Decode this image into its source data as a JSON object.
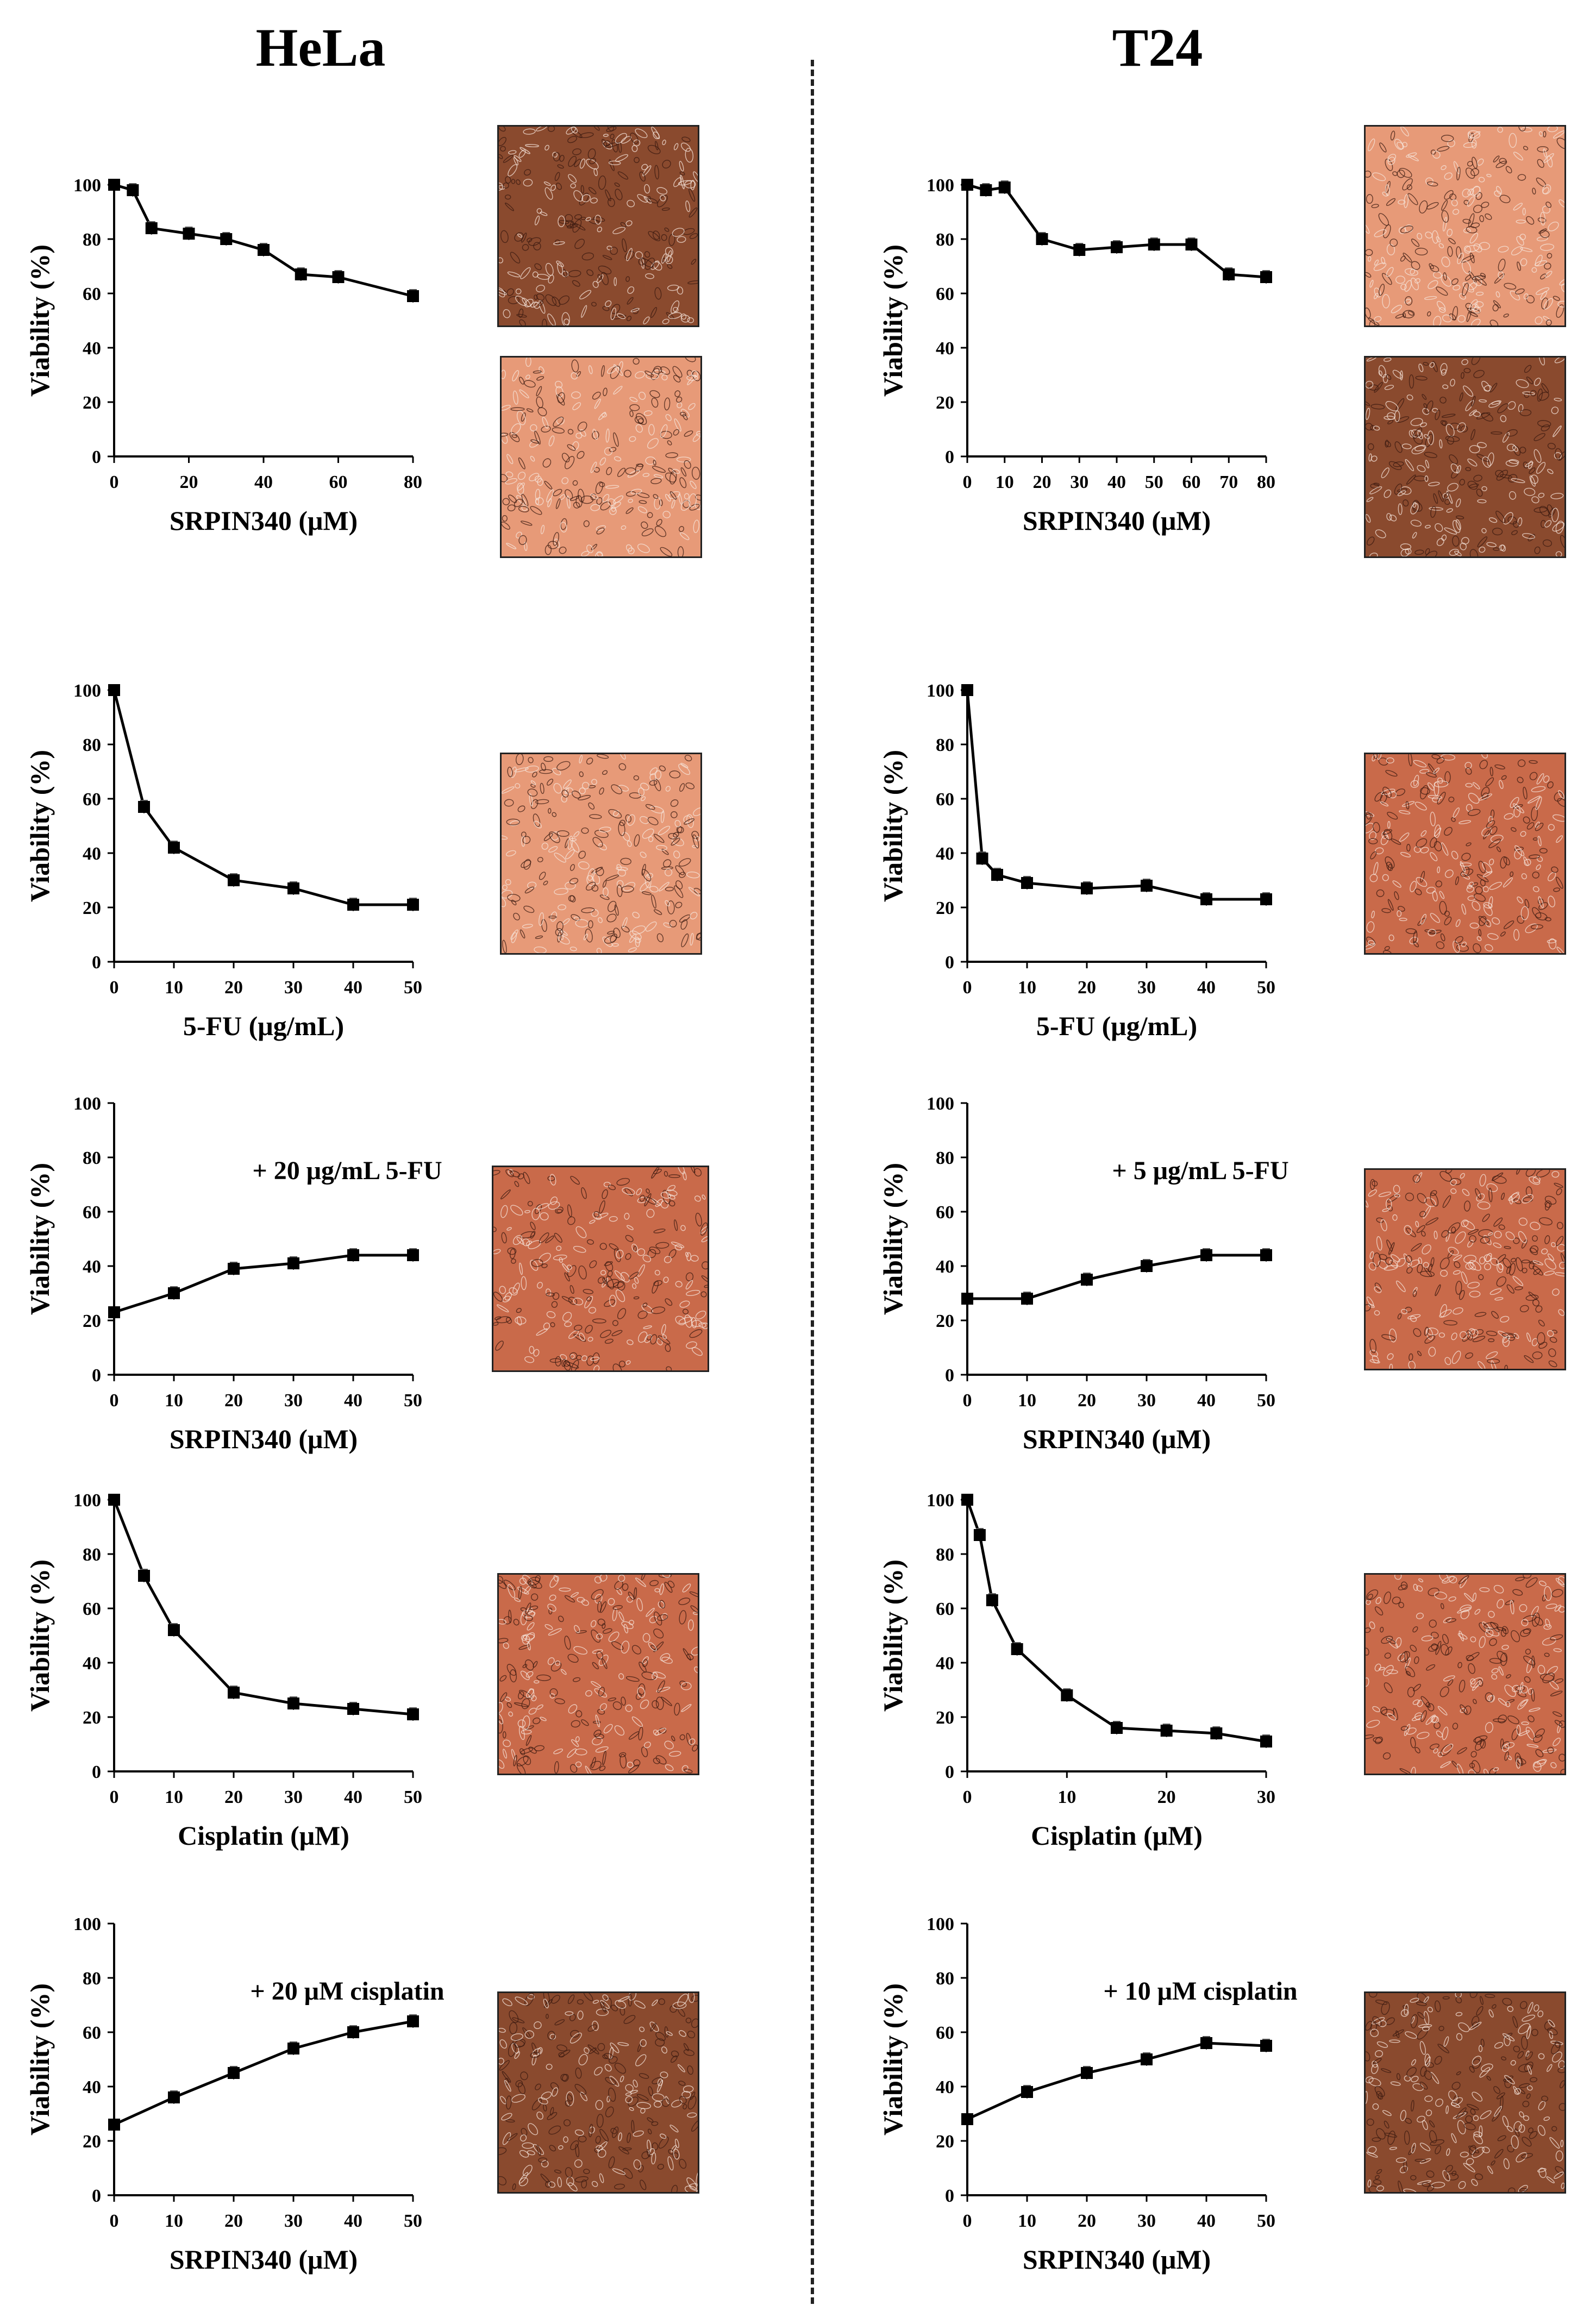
{
  "columns": {
    "left_title": "HeLa",
    "right_title": "T24"
  },
  "colors": {
    "line": "#000000",
    "micro_dark": "#8a4a2e",
    "micro_mid": "#c96a4a",
    "micro_light": "#e79a78"
  },
  "chart_data": [
    {
      "type": "line",
      "panel": "hela-1",
      "xlabel": "SRPIN340 (μM)",
      "ylabel": "Viability (%)",
      "annotation": "",
      "x": [
        0,
        5,
        10,
        20,
        30,
        40,
        50,
        60,
        80
      ],
      "y": [
        100,
        98,
        84,
        82,
        80,
        76,
        67,
        66,
        59
      ],
      "xticks": [
        0,
        20,
        40,
        60,
        80
      ],
      "xlim": [
        0,
        80
      ],
      "ylim": [
        0,
        100
      ],
      "yticks": [
        0,
        20,
        40,
        60,
        80,
        100
      ]
    },
    {
      "type": "line",
      "panel": "t24-1",
      "xlabel": "SRPIN340 (μM)",
      "ylabel": "Viability (%)",
      "annotation": "",
      "x": [
        0,
        5,
        10,
        20,
        30,
        40,
        50,
        60,
        70,
        80
      ],
      "y": [
        100,
        98,
        99,
        80,
        76,
        77,
        78,
        78,
        67,
        66
      ],
      "xticks": [
        0,
        10,
        20,
        30,
        40,
        50,
        60,
        70,
        80
      ],
      "xlim": [
        0,
        80
      ],
      "ylim": [
        0,
        100
      ],
      "yticks": [
        0,
        20,
        40,
        60,
        80,
        100
      ]
    },
    {
      "type": "line",
      "panel": "hela-2",
      "xlabel": "5-FU (μg/mL)",
      "ylabel": "Viability (%)",
      "annotation": "",
      "x": [
        0,
        5,
        10,
        20,
        30,
        40,
        50
      ],
      "y": [
        100,
        57,
        42,
        30,
        27,
        21,
        21
      ],
      "xticks": [
        0,
        10,
        20,
        30,
        40,
        50
      ],
      "xlim": [
        0,
        50
      ],
      "ylim": [
        0,
        100
      ],
      "yticks": [
        0,
        20,
        40,
        60,
        80,
        100
      ]
    },
    {
      "type": "line",
      "panel": "t24-2",
      "xlabel": "5-FU (μg/mL)",
      "ylabel": "Viability (%)",
      "annotation": "",
      "x": [
        0,
        2.5,
        5,
        10,
        20,
        30,
        40,
        50
      ],
      "y": [
        100,
        38,
        32,
        29,
        27,
        28,
        23,
        23
      ],
      "xticks": [
        0,
        10,
        20,
        30,
        40,
        50
      ],
      "xlim": [
        0,
        50
      ],
      "ylim": [
        0,
        100
      ],
      "yticks": [
        0,
        20,
        40,
        60,
        80,
        100
      ]
    },
    {
      "type": "line",
      "panel": "hela-3",
      "xlabel": "SRPIN340 (μM)",
      "ylabel": "Viability (%)",
      "annotation": "+ 20 μg/mL 5-FU",
      "x": [
        0,
        10,
        20,
        30,
        40,
        50
      ],
      "y": [
        23,
        30,
        39,
        41,
        44,
        44
      ],
      "xticks": [
        0,
        10,
        20,
        30,
        40,
        50
      ],
      "xlim": [
        0,
        50
      ],
      "ylim": [
        0,
        100
      ],
      "yticks": [
        0,
        20,
        40,
        60,
        80,
        100
      ]
    },
    {
      "type": "line",
      "panel": "t24-3",
      "xlabel": "SRPIN340 (μM)",
      "ylabel": "Viability (%)",
      "annotation": "+ 5 μg/mL 5-FU",
      "x": [
        0,
        10,
        20,
        30,
        40,
        50
      ],
      "y": [
        28,
        28,
        35,
        40,
        44,
        44
      ],
      "xticks": [
        0,
        10,
        20,
        30,
        40,
        50
      ],
      "xlim": [
        0,
        50
      ],
      "ylim": [
        0,
        100
      ],
      "yticks": [
        0,
        20,
        40,
        60,
        80,
        100
      ]
    },
    {
      "type": "line",
      "panel": "hela-4",
      "xlabel": "Cisplatin (μM)",
      "ylabel": "Viability (%)",
      "annotation": "",
      "x": [
        0,
        5,
        10,
        20,
        30,
        40,
        50
      ],
      "y": [
        100,
        72,
        52,
        29,
        25,
        23,
        21
      ],
      "xticks": [
        0,
        10,
        20,
        30,
        40,
        50
      ],
      "xlim": [
        0,
        50
      ],
      "ylim": [
        0,
        100
      ],
      "yticks": [
        0,
        20,
        40,
        60,
        80,
        100
      ]
    },
    {
      "type": "line",
      "panel": "t24-4",
      "xlabel": "Cisplatin (μM)",
      "ylabel": "Viability (%)",
      "annotation": "",
      "x": [
        0,
        1.25,
        2.5,
        5,
        10,
        15,
        20,
        25,
        30
      ],
      "y": [
        100,
        87,
        63,
        45,
        28,
        16,
        15,
        14,
        11
      ],
      "xticks": [
        0,
        10,
        20,
        30
      ],
      "xlim": [
        0,
        30
      ],
      "ylim": [
        0,
        100
      ],
      "yticks": [
        0,
        20,
        40,
        60,
        80,
        100
      ]
    },
    {
      "type": "line",
      "panel": "hela-5",
      "xlabel": "SRPIN340 (μM)",
      "ylabel": "Viability (%)",
      "annotation": "+ 20 μM cisplatin",
      "x": [
        0,
        10,
        20,
        30,
        40,
        50
      ],
      "y": [
        26,
        36,
        45,
        54,
        60,
        64
      ],
      "xticks": [
        0,
        10,
        20,
        30,
        40,
        50
      ],
      "xlim": [
        0,
        50
      ],
      "ylim": [
        0,
        100
      ],
      "yticks": [
        0,
        20,
        40,
        60,
        80,
        100
      ]
    },
    {
      "type": "line",
      "panel": "t24-5",
      "xlabel": "SRPIN340 (μM)",
      "ylabel": "Viability (%)",
      "annotation": "+ 10 μM cisplatin",
      "x": [
        0,
        10,
        20,
        30,
        40,
        50
      ],
      "y": [
        28,
        38,
        45,
        50,
        56,
        55
      ],
      "xticks": [
        0,
        10,
        20,
        30,
        40,
        50
      ],
      "xlim": [
        0,
        50
      ],
      "ylim": [
        0,
        100
      ],
      "yticks": [
        0,
        20,
        40,
        60,
        80,
        100
      ]
    }
  ]
}
